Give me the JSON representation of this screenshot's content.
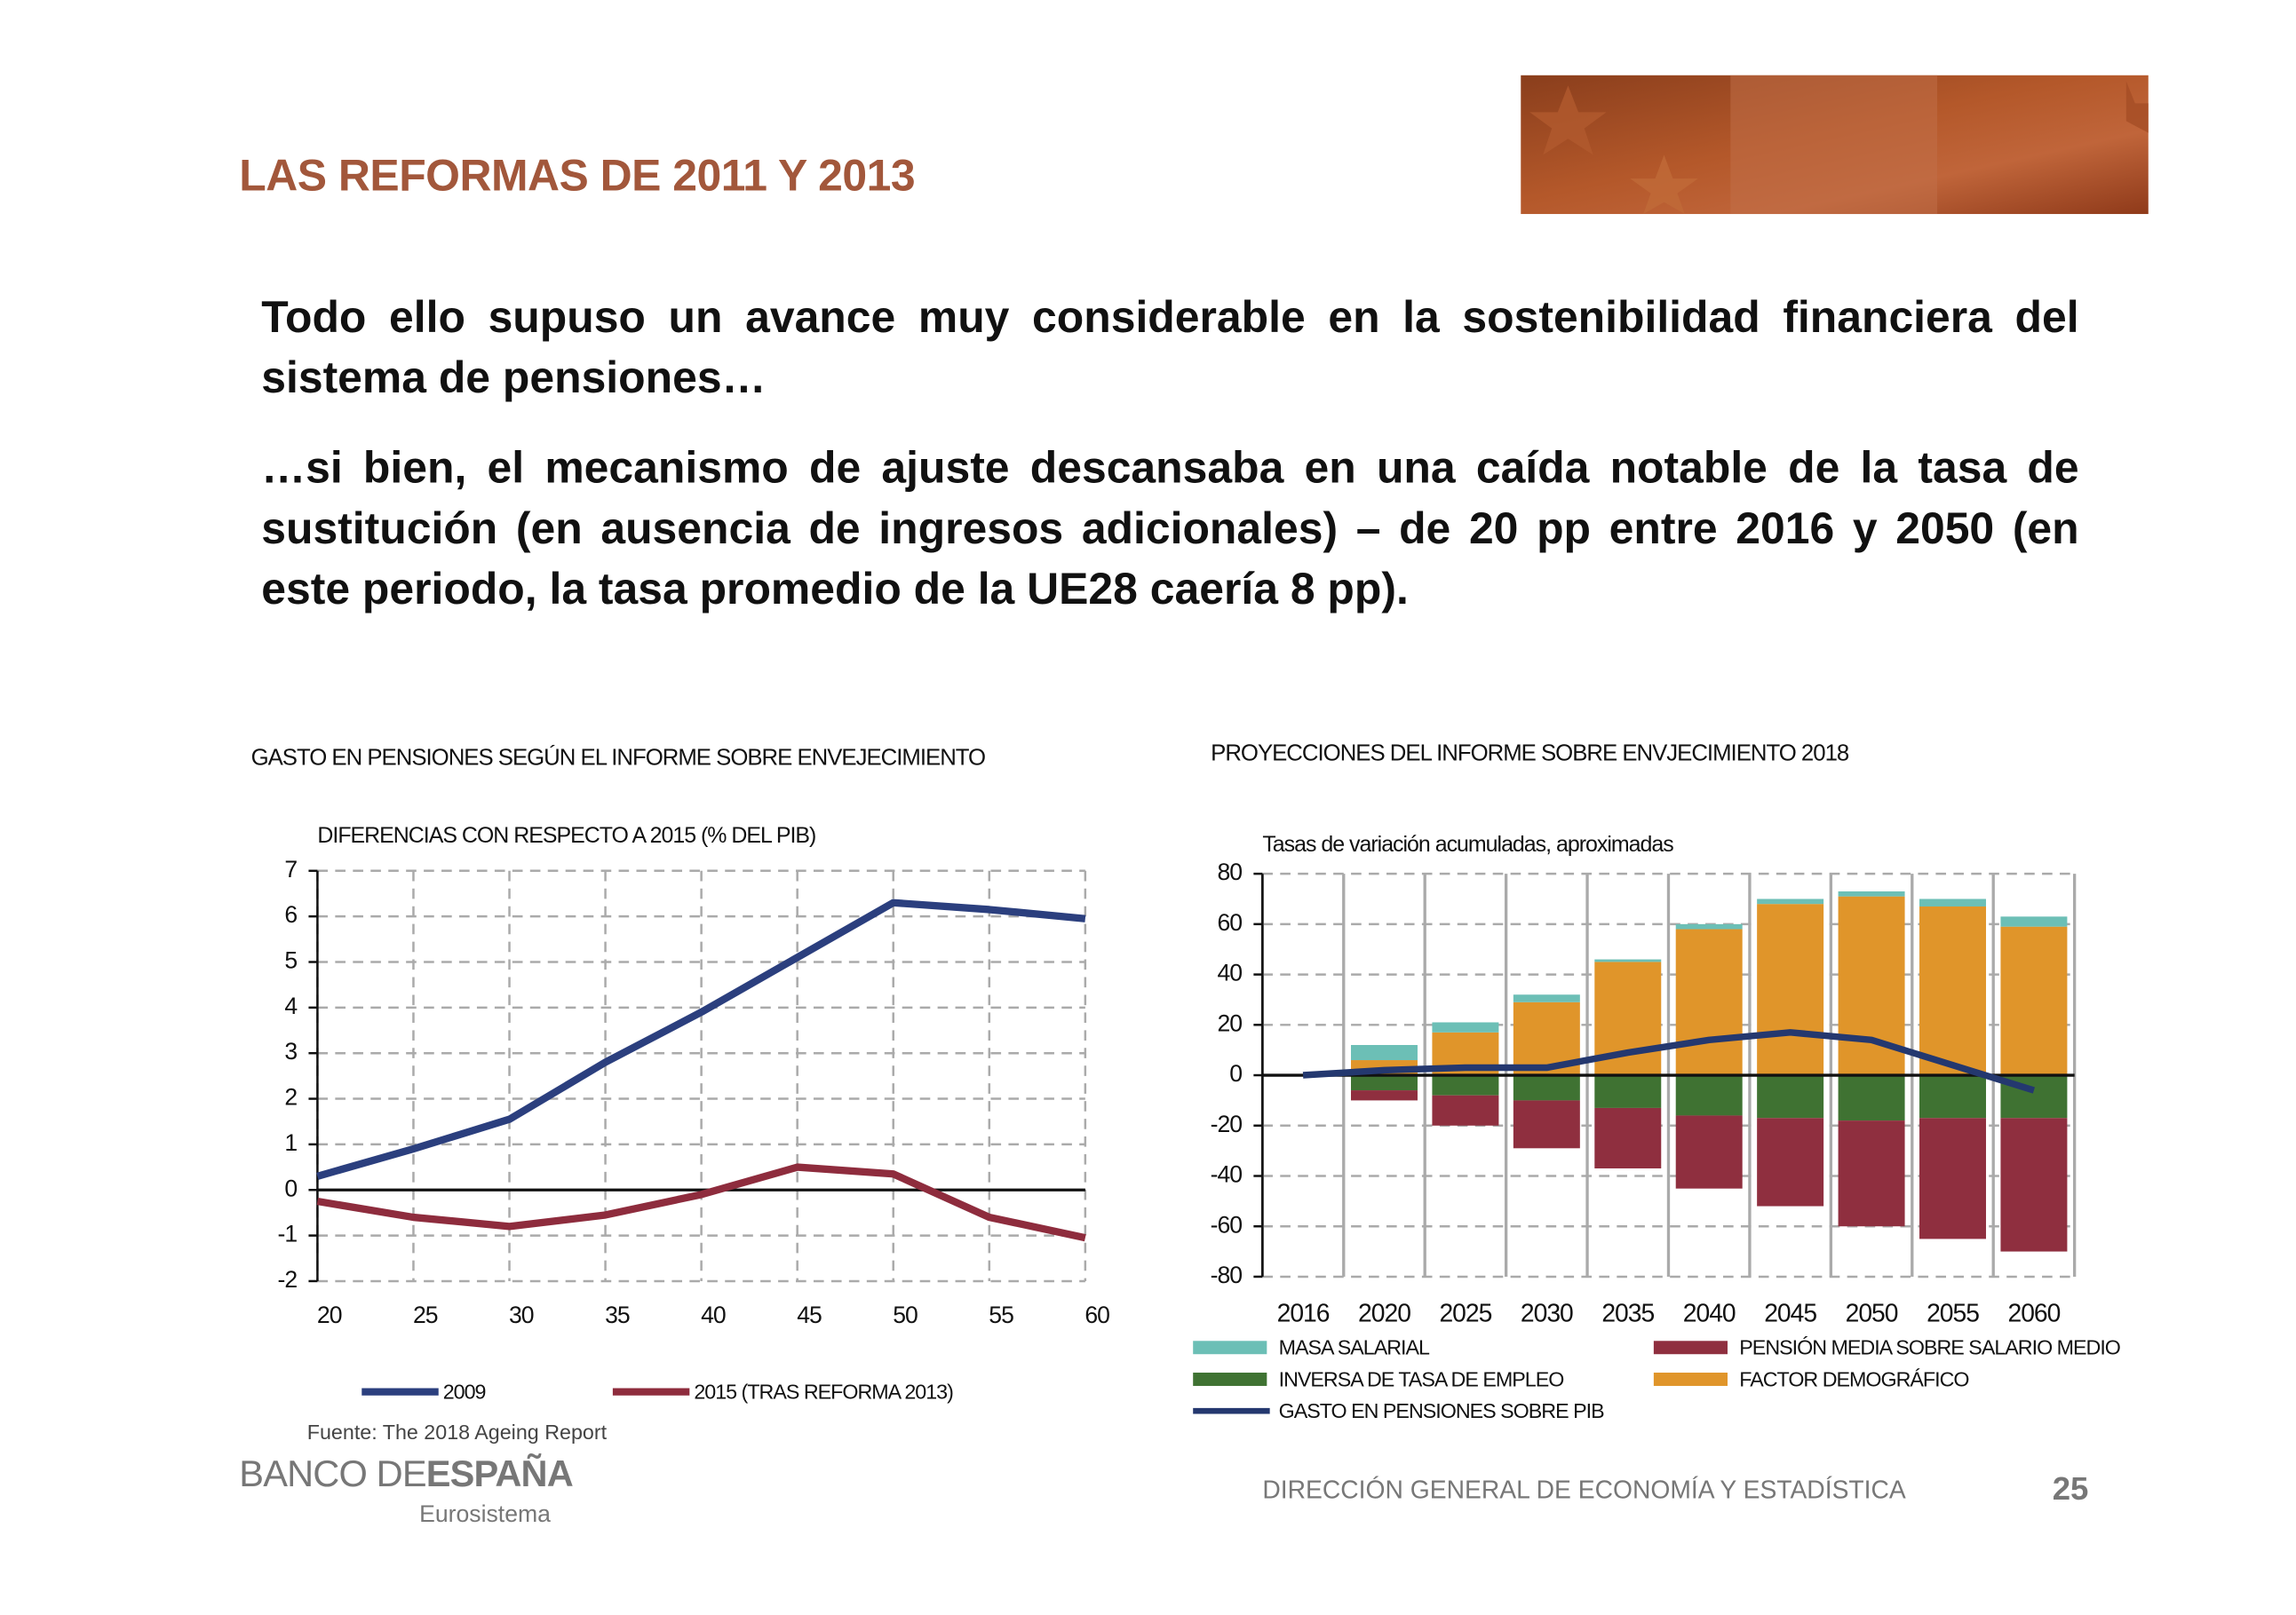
{
  "header": {
    "title": "LAS REFORMAS DE 2011 Y 2013"
  },
  "paragraphs": [
    "Todo ello supuso un avance muy considerable en la sostenibilidad financiera del sistema de pensiones…",
    "…si bien, el mecanismo de ajuste descansaba en una caída notable de la tasa de sustitución (en ausencia de ingresos adicionales) – de 20 pp entre 2016 y 2050 (en este periodo, la tasa promedio de la UE28 caería 8 pp)."
  ],
  "source": "Fuente: The 2018 Ageing Report",
  "footer": {
    "bank_regular": "BANCO DE",
    "bank_bold": "ESPAÑA",
    "network": "Eurosistema",
    "department": "DIRECCIÓN GENERAL DE ECONOMÍA Y ESTADÍSTICA",
    "page": "25"
  },
  "chart_data": [
    {
      "type": "line",
      "title": "GASTO EN PENSIONES SEGÚN EL INFORME SOBRE ENVEJECIMIENTO",
      "subtitle": "DIFERENCIAS CON RESPECTO A 2015 (% DEL PIB)",
      "x": [
        20,
        25,
        30,
        35,
        40,
        45,
        50,
        55,
        60
      ],
      "series": [
        {
          "name": "2009",
          "color": "#2b3f7e",
          "values": [
            0.3,
            0.9,
            1.55,
            2.8,
            3.9,
            5.1,
            6.3,
            6.15,
            5.95
          ]
        },
        {
          "name": "2015 (TRAS REFORMA 2013)",
          "color": "#8e2c3d",
          "values": [
            -0.25,
            -0.6,
            -0.8,
            -0.55,
            -0.1,
            0.5,
            0.35,
            -0.6,
            -1.05
          ]
        }
      ],
      "xlim": [
        20,
        60
      ],
      "xticks": [
        20,
        25,
        30,
        35,
        40,
        45,
        50,
        55,
        60
      ],
      "ylim": [
        -2,
        7
      ],
      "yticks": [
        -2,
        -1,
        0,
        1,
        2,
        3,
        4,
        5,
        6,
        7
      ],
      "grid": true
    },
    {
      "type": "bar",
      "stacked": true,
      "title": "PROYECCIONES DEL INFORME SOBRE ENVJECIMIENTO 2018",
      "subtitle": "Tasas de variación acumuladas, aproximadas",
      "categories": [
        "2016",
        "2020",
        "2025",
        "2030",
        "2035",
        "2040",
        "2045",
        "2050",
        "2055",
        "2060"
      ],
      "series": [
        {
          "name": "MASA SALARIAL",
          "color": "#6cbfb6",
          "values": [
            0,
            6,
            4,
            3,
            1,
            2,
            2,
            2,
            3,
            4
          ]
        },
        {
          "name": "PENSIÓN MEDIA SOBRE SALARIO MEDIO",
          "color": "#8f2f3f",
          "values": [
            0,
            -4,
            -12,
            -19,
            -24,
            -29,
            -35,
            -42,
            -48,
            -53
          ]
        },
        {
          "name": "INVERSA DE TASA DE EMPLEO",
          "color": "#3f7232",
          "values": [
            0,
            -6,
            -8,
            -10,
            -13,
            -16,
            -17,
            -18,
            -17,
            -17
          ]
        },
        {
          "name": "FACTOR DEMOGRÁFICO",
          "color": "#e0952a",
          "values": [
            0,
            6,
            17,
            29,
            45,
            58,
            68,
            71,
            67,
            59
          ]
        },
        {
          "name": "GASTO EN PENSIONES SOBRE PIB",
          "color": "#24386f",
          "kind": "line",
          "values": [
            0,
            2,
            3,
            3,
            9,
            14,
            17,
            14,
            4,
            -6
          ]
        }
      ],
      "ylim": [
        -80,
        80
      ],
      "yticks": [
        -80,
        -60,
        -40,
        -20,
        0,
        20,
        40,
        60,
        80
      ],
      "grid": true
    }
  ]
}
